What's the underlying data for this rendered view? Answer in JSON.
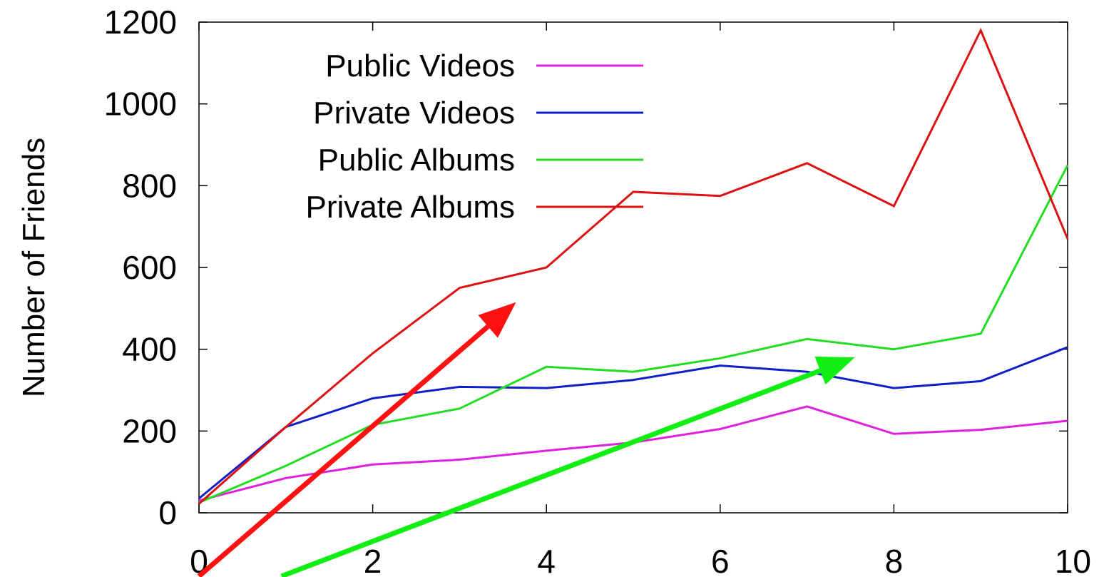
{
  "chart_data": {
    "type": "line",
    "title": "",
    "xlabel": "",
    "ylabel": "Number of Friends",
    "xlim": [
      0,
      10
    ],
    "ylim": [
      0,
      1200
    ],
    "x_ticks": [
      "0",
      "2",
      "4",
      "6",
      "8",
      "10"
    ],
    "y_ticks": [
      "0",
      "200",
      "400",
      "600",
      "800",
      "1000",
      "1200"
    ],
    "x": [
      0,
      1,
      2,
      3,
      4,
      5,
      6,
      7,
      8,
      9,
      10
    ],
    "grid": false,
    "legend_position": "top-left",
    "series": [
      {
        "name": "Public Videos",
        "color": "#e020e0",
        "values": [
          30,
          85,
          118,
          130,
          152,
          172,
          205,
          260,
          193,
          203,
          225
        ]
      },
      {
        "name": "Private Videos",
        "color": "#1020c8",
        "values": [
          35,
          210,
          280,
          308,
          305,
          325,
          360,
          345,
          305,
          322,
          405
        ]
      },
      {
        "name": "Public Albums",
        "color": "#22dd22",
        "values": [
          25,
          115,
          215,
          255,
          357,
          345,
          378,
          425,
          400,
          438,
          850
        ]
      },
      {
        "name": "Private Albums",
        "color": "#dd1111",
        "values": [
          22,
          210,
          390,
          550,
          600,
          785,
          775,
          855,
          750,
          1180,
          670
        ]
      }
    ],
    "annotations": [
      {
        "type": "arrow",
        "color": "#ff1111",
        "from": [
          0.0,
          -155
        ],
        "to": [
          3.65,
          515
        ]
      },
      {
        "type": "arrow",
        "color": "#11ee11",
        "from": [
          0.95,
          -155
        ],
        "to": [
          7.55,
          380
        ]
      }
    ]
  }
}
